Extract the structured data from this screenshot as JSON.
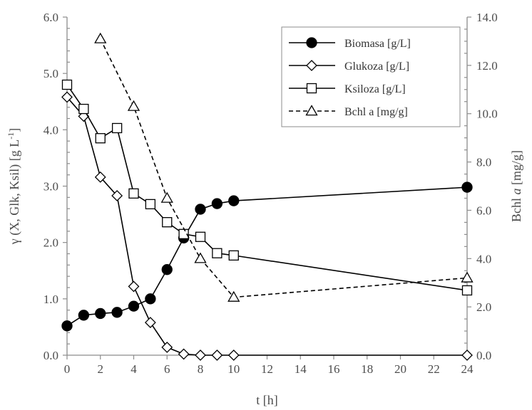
{
  "chart_data": {
    "type": "line",
    "xlabel": "t [h]",
    "ylabel_left_text": "γ (X, Glk, Ksil) [g L",
    "ylabel_left_sup": "-1",
    "ylabel_left_close": "]",
    "ylabel_right_text": "Bchl ",
    "ylabel_right_italic": "a",
    "ylabel_right_unit": " [mg/g]",
    "xlim": [
      0,
      24
    ],
    "xticks": [
      0,
      2,
      4,
      6,
      8,
      10,
      12,
      14,
      16,
      18,
      20,
      22,
      24
    ],
    "ylim_left": [
      0,
      6
    ],
    "yticks_left": [
      "0.0",
      "1.0",
      "2.0",
      "3.0",
      "4.0",
      "5.0",
      "6.0"
    ],
    "ylim_right": [
      0,
      14
    ],
    "yticks_right": [
      "0.0",
      "2.0",
      "4.0",
      "6.0",
      "8.0",
      "10.0",
      "12.0",
      "14.0"
    ],
    "grid": false,
    "legend_position": "top-right",
    "series": [
      {
        "name": "Biomasa [g/L]",
        "axis": "left",
        "marker": "circle-filled",
        "line": "solid",
        "x": [
          0,
          1,
          2,
          3,
          4,
          5,
          6,
          7,
          8,
          9,
          10,
          24
        ],
        "y": [
          0.52,
          0.71,
          0.74,
          0.76,
          0.87,
          1.0,
          1.52,
          2.08,
          2.59,
          2.69,
          2.74,
          2.98
        ]
      },
      {
        "name": "Glukoza [g/L]",
        "axis": "left",
        "marker": "diamond-open",
        "line": "solid",
        "x": [
          0,
          1,
          2,
          3,
          4,
          5,
          6,
          7,
          8,
          9,
          10,
          24
        ],
        "y": [
          4.58,
          4.24,
          3.16,
          2.83,
          1.22,
          0.58,
          0.14,
          0.02,
          0.0,
          0.0,
          0.0,
          0.0
        ]
      },
      {
        "name": "Ksiloza [g/L]",
        "axis": "left",
        "marker": "square-open",
        "line": "solid",
        "x": [
          0,
          1,
          2,
          3,
          4,
          5,
          6,
          7,
          8,
          9,
          10,
          24
        ],
        "y": [
          4.8,
          4.37,
          3.85,
          4.03,
          2.87,
          2.68,
          2.36,
          2.15,
          2.1,
          1.81,
          1.77,
          1.15
        ]
      },
      {
        "name": "Bchl a [mg/g]",
        "axis": "right",
        "marker": "triangle-open",
        "line": "dashed",
        "x": [
          2,
          4,
          6,
          8,
          10,
          24
        ],
        "y": [
          13.1,
          10.3,
          6.5,
          4.0,
          2.4,
          3.2
        ]
      }
    ]
  }
}
